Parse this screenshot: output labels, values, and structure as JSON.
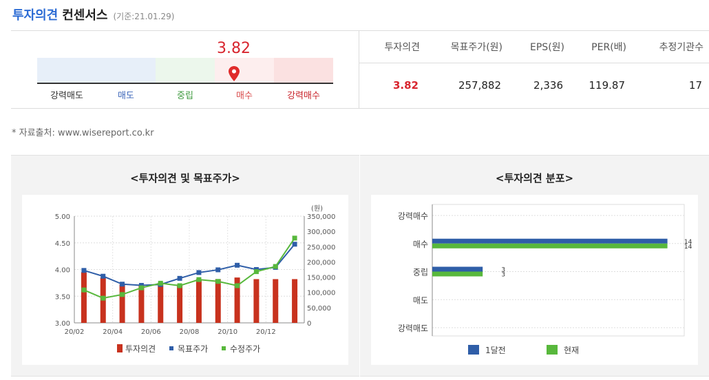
{
  "header": {
    "title_blue": "투자의견",
    "title_rest": "컨센서스",
    "date": "(기준:21.01.29)"
  },
  "gauge": {
    "value": "3.82",
    "marker_value": 3.82,
    "scale_min": 1,
    "scale_max": 5,
    "segments": [
      {
        "label": "강력매도",
        "color": "#e7eff9",
        "text_color": "#333333"
      },
      {
        "label": "매도",
        "color": "#e7eff9",
        "text_color": "#3a64b8"
      },
      {
        "label": "중립",
        "color": "#ecf7ec",
        "text_color": "#3f9a3f"
      },
      {
        "label": "매수",
        "color": "#fdeeee",
        "text_color": "#d84a4a"
      },
      {
        "label": "강력매수",
        "color": "#fbe1e1",
        "text_color": "#c8242b"
      }
    ]
  },
  "summary_table": {
    "headers": [
      "투자의견",
      "목표주가(원)",
      "EPS(원)",
      "PER(배)",
      "추정기관수"
    ],
    "row": [
      "3.82",
      "257,882",
      "2,336",
      "119.87",
      "17"
    ]
  },
  "source": "* 자료출처: www.wisereport.co.kr",
  "chart_data": [
    {
      "type": "bar",
      "title": "<투자의견 및 목표주가>",
      "categories": [
        "20/02",
        "20/03",
        "20/04",
        "20/05",
        "20/06",
        "20/07",
        "20/08",
        "20/09",
        "20/10",
        "20/11",
        "20/12",
        "21/01"
      ],
      "x_tick_labels": [
        "20/02",
        "20/04",
        "20/06",
        "20/08",
        "20/10",
        "20/12"
      ],
      "y_left": {
        "min": 3.0,
        "max": 5.0,
        "ticks": [
          "5.00",
          "4.50",
          "4.00",
          "3.50",
          "3.00"
        ]
      },
      "y_right": {
        "unit": "(원)",
        "min": 0,
        "max": 350000,
        "ticks": [
          "350,000",
          "300,000",
          "250,000",
          "200,000",
          "150,000",
          "100,000",
          "50,000",
          "0"
        ]
      },
      "series": [
        {
          "name": "투자의견",
          "kind": "bar",
          "axis": "left",
          "color": "#c8321e",
          "values": [
            3.95,
            3.85,
            3.72,
            3.72,
            3.75,
            3.72,
            3.82,
            3.82,
            3.85,
            3.82,
            3.82,
            3.82
          ]
        },
        {
          "name": "목표주가",
          "kind": "line",
          "axis": "right",
          "color": "#2f5ea8",
          "values": [
            172000,
            153000,
            127000,
            123000,
            126000,
            146000,
            165000,
            174000,
            189000,
            175000,
            182000,
            258000
          ]
        },
        {
          "name": "수정주가",
          "kind": "line",
          "axis": "right",
          "color": "#58b83c",
          "values": [
            108000,
            81000,
            93000,
            115000,
            130000,
            122000,
            142000,
            136000,
            122000,
            168000,
            185000,
            278000
          ]
        }
      ],
      "grid": true
    },
    {
      "type": "bar",
      "orientation": "horizontal",
      "title": "<투자의견 분포>",
      "categories": [
        "강력매수",
        "매수",
        "중립",
        "매도",
        "강력매도"
      ],
      "xlim": [
        0,
        15
      ],
      "series": [
        {
          "name": "1달전",
          "color": "#2f5ea8",
          "values": [
            0,
            14,
            3,
            0,
            0
          ]
        },
        {
          "name": "현재",
          "color": "#58b83c",
          "values": [
            0,
            14,
            3,
            0,
            0
          ]
        }
      ],
      "grid": true
    }
  ]
}
